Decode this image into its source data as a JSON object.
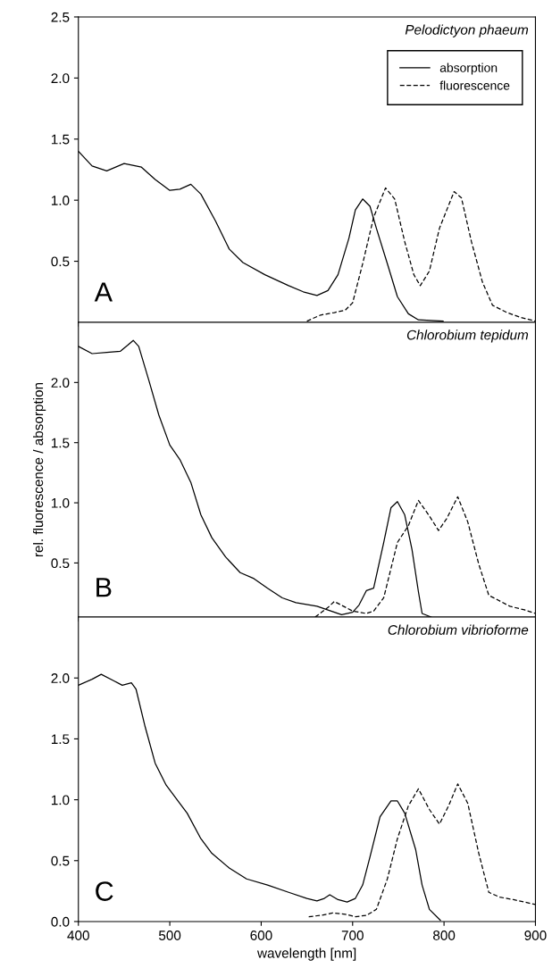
{
  "chart_data": [
    {
      "type": "line",
      "title": "Pelodictyon phaeum",
      "annotations": [
        "A"
      ],
      "xlim": [
        400,
        900
      ],
      "xticks": [
        400,
        500,
        600,
        700,
        800,
        900
      ],
      "ylim": [
        0,
        2.5
      ],
      "yticks": [
        0.5,
        {
          "value": 1,
          "label": "1.0"
        },
        1.5,
        {
          "value": 2,
          "label": "2.0"
        },
        2.5
      ],
      "tick_labels": "y",
      "legend": "top right",
      "grid": false,
      "series": [
        {
          "name": "absorption",
          "color": "#000000",
          "line_style": "solid",
          "x": [
            400,
            415,
            431,
            450,
            469,
            484,
            500,
            511,
            523,
            534,
            550,
            565,
            580,
            604,
            630,
            646,
            661,
            673,
            684,
            696,
            703,
            711,
            719,
            726,
            738,
            749,
            761,
            772,
            799
          ],
          "values": [
            1.4,
            1.28,
            1.24,
            1.3,
            1.27,
            1.17,
            1.08,
            1.09,
            1.13,
            1.05,
            0.83,
            0.6,
            0.49,
            0.39,
            0.3,
            0.25,
            0.22,
            0.26,
            0.39,
            0.69,
            0.92,
            1.01,
            0.95,
            0.77,
            0.48,
            0.21,
            0.07,
            0.02,
            0.01
          ]
        },
        {
          "name": "fluorescence",
          "color": "#000000",
          "line_style": "dashed",
          "x": [
            650,
            665,
            680,
            692,
            700,
            711,
            723,
            736,
            746,
            757,
            767,
            774,
            784,
            795,
            811,
            819,
            830,
            842,
            853,
            869,
            884,
            900
          ],
          "values": [
            0.01,
            0.06,
            0.08,
            0.1,
            0.16,
            0.48,
            0.86,
            1.1,
            1.01,
            0.66,
            0.39,
            0.3,
            0.42,
            0.77,
            1.07,
            1.02,
            0.66,
            0.33,
            0.14,
            0.08,
            0.04,
            0.01
          ]
        }
      ]
    },
    {
      "type": "line",
      "title": "Chlorobium tepidum",
      "annotations": [
        "B"
      ],
      "ylabel": "rel. fluorescence / absorption",
      "xlim": [
        400,
        900
      ],
      "xticks": [
        400,
        500,
        600,
        700,
        800,
        900
      ],
      "ylim": [
        0.05,
        2.5
      ],
      "yticks": [
        0.5,
        {
          "value": 1,
          "label": "1.0"
        },
        1.5,
        {
          "value": 2,
          "label": "2.0"
        }
      ],
      "tick_labels": "y",
      "grid": false,
      "series": [
        {
          "color": "#000000",
          "line_style": "solid",
          "x": [
            400,
            415,
            431,
            446,
            454,
            460,
            466,
            477,
            488,
            500,
            511,
            523,
            534,
            546,
            561,
            577,
            592,
            607,
            623,
            638,
            661,
            688,
            700,
            707,
            715,
            723,
            734,
            742,
            749,
            757,
            765,
            772,
            776,
            786
          ],
          "values": [
            2.3,
            2.24,
            2.25,
            2.26,
            2.31,
            2.35,
            2.3,
            2.02,
            1.73,
            1.48,
            1.36,
            1.17,
            0.9,
            0.71,
            0.55,
            0.42,
            0.37,
            0.29,
            0.21,
            0.17,
            0.14,
            0.07,
            0.09,
            0.15,
            0.27,
            0.29,
            0.67,
            0.96,
            1.01,
            0.9,
            0.61,
            0.26,
            0.08,
            0.05
          ]
        },
        {
          "color": "#000000",
          "line_style": "dashed",
          "x": [
            659,
            673,
            680,
            690,
            700,
            715,
            723,
            734,
            749,
            761,
            772,
            784,
            794,
            803,
            815,
            826,
            838,
            849,
            857,
            872,
            888,
            900
          ],
          "values": [
            0.05,
            0.13,
            0.18,
            0.14,
            0.1,
            0.08,
            0.1,
            0.21,
            0.67,
            0.81,
            1.02,
            0.89,
            0.77,
            0.87,
            1.05,
            0.84,
            0.49,
            0.23,
            0.2,
            0.14,
            0.11,
            0.08
          ]
        }
      ]
    },
    {
      "type": "line",
      "title": "Chlorobium vibrioforme",
      "annotations": [
        "C"
      ],
      "xlabel": "wavelength [nm]",
      "xlim": [
        400,
        900
      ],
      "xticks": [
        400,
        500,
        600,
        700,
        800,
        900
      ],
      "ylim": [
        0,
        2.5
      ],
      "yticks": [
        {
          "value": 0,
          "label": "0.0"
        },
        0.5,
        {
          "value": 1,
          "label": "1.0"
        },
        1.5,
        {
          "value": 2,
          "label": "2.0"
        }
      ],
      "grid": false,
      "series": [
        {
          "color": "#000000",
          "line_style": "solid",
          "x": [
            400,
            415,
            425,
            438,
            448,
            458,
            463,
            473,
            484,
            496,
            508,
            519,
            534,
            546,
            565,
            584,
            607,
            630,
            650,
            661,
            669,
            675,
            684,
            694,
            703,
            711,
            719,
            730,
            742,
            749,
            757,
            769,
            776,
            784,
            796
          ],
          "values": [
            1.94,
            1.99,
            2.03,
            1.98,
            1.94,
            1.96,
            1.91,
            1.6,
            1.3,
            1.12,
            1.0,
            0.89,
            0.68,
            0.56,
            0.44,
            0.35,
            0.3,
            0.24,
            0.19,
            0.17,
            0.19,
            0.22,
            0.18,
            0.16,
            0.19,
            0.3,
            0.53,
            0.86,
            0.99,
            0.99,
            0.89,
            0.59,
            0.3,
            0.1,
            0.01
          ]
        },
        {
          "color": "#000000",
          "line_style": "dashed",
          "x": [
            652,
            665,
            678,
            692,
            703,
            715,
            726,
            738,
            749,
            761,
            772,
            784,
            795,
            805,
            815,
            826,
            838,
            849,
            861,
            876,
            900
          ],
          "values": [
            0.04,
            0.05,
            0.07,
            0.06,
            0.04,
            0.05,
            0.1,
            0.35,
            0.68,
            0.95,
            1.09,
            0.92,
            0.8,
            0.95,
            1.13,
            0.97,
            0.56,
            0.24,
            0.2,
            0.18,
            0.14
          ]
        }
      ]
    }
  ]
}
